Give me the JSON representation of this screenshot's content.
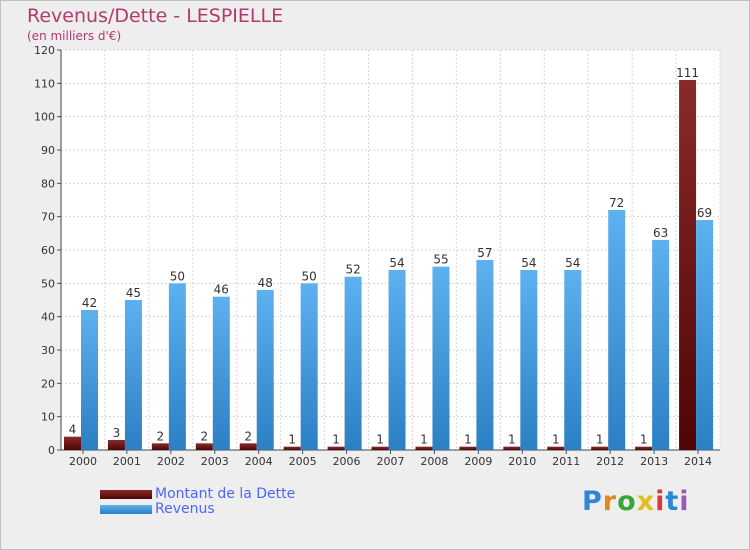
{
  "chart_data": {
    "type": "bar",
    "title": "Revenus/Dette - LESPIELLE",
    "subtitle": "(en milliers d'€)",
    "categories": [
      "2000",
      "2001",
      "2002",
      "2003",
      "2004",
      "2005",
      "2006",
      "2007",
      "2008",
      "2009",
      "2010",
      "2011",
      "2012",
      "2013",
      "2014"
    ],
    "series": [
      {
        "name": "Montant de la Dette",
        "values": [
          4,
          3,
          2,
          2,
          2,
          1,
          1,
          1,
          1,
          1,
          1,
          1,
          1,
          1,
          111
        ]
      },
      {
        "name": "Revenus",
        "values": [
          42,
          45,
          50,
          46,
          48,
          50,
          52,
          54,
          55,
          57,
          54,
          54,
          72,
          63,
          69
        ]
      }
    ],
    "ylim": [
      0,
      120
    ],
    "yticks": [
      0,
      10,
      20,
      30,
      40,
      50,
      60,
      70,
      80,
      90,
      100,
      110,
      120
    ],
    "grid": true,
    "legend_position": "bottom-left"
  },
  "colors": {
    "dette": "#6b0f12",
    "revenus": "#4aa0e0",
    "title": "#b23a6e",
    "legend_text": "#4a66ff"
  },
  "logo": {
    "text": "Proxiti",
    "icon": "proxiti-logo"
  }
}
